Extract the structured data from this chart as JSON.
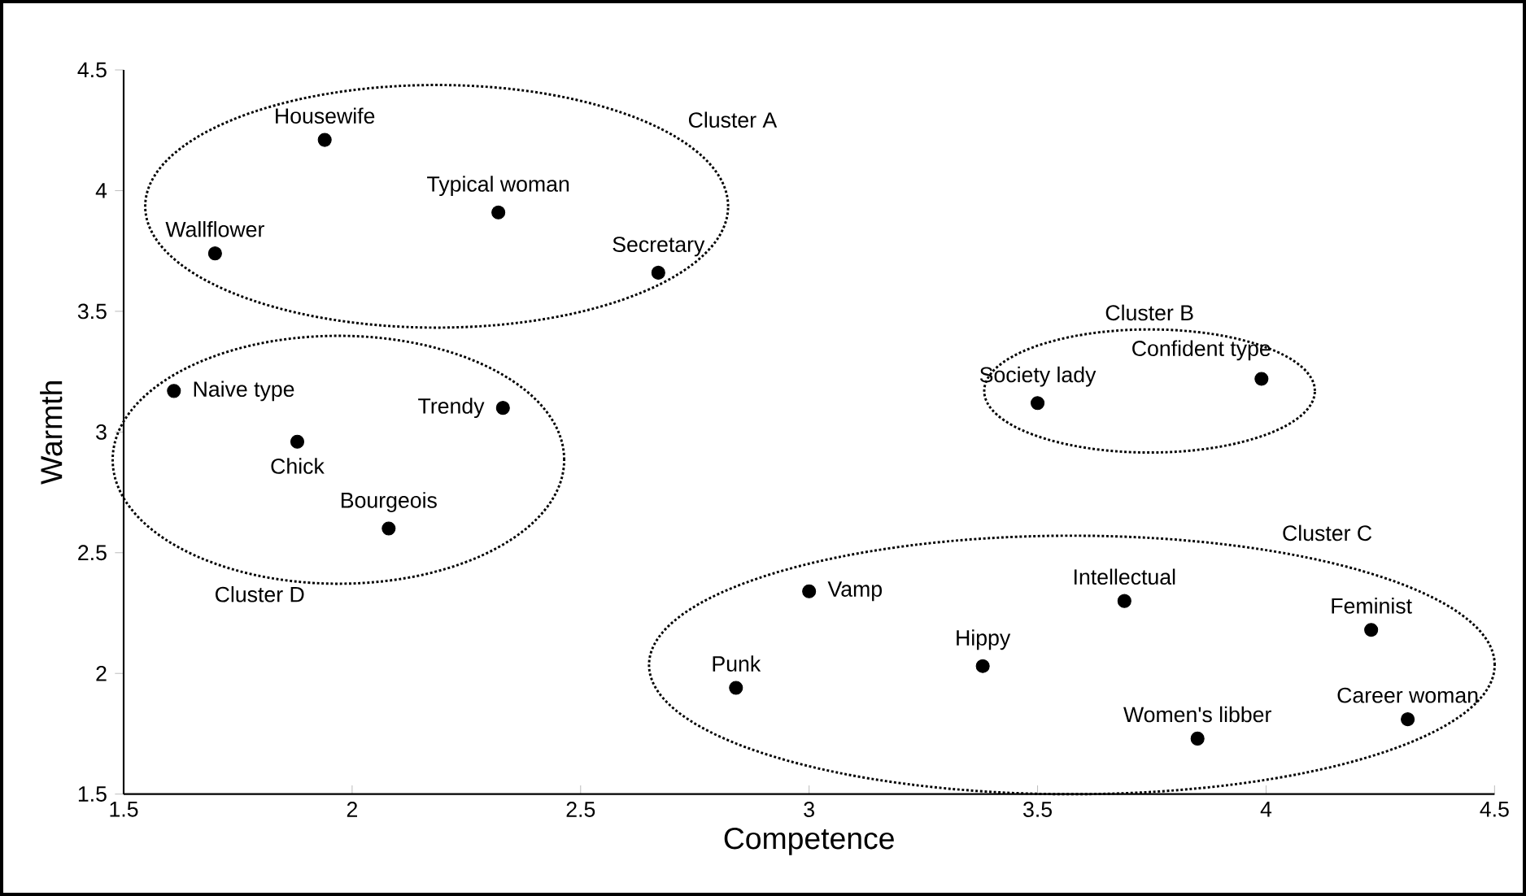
{
  "chart_data": {
    "type": "scatter",
    "xlabel": "Competence",
    "ylabel": "Warmth",
    "xlim": [
      1.5,
      4.5
    ],
    "ylim": [
      1.5,
      4.5
    ],
    "xticks": [
      1.5,
      2,
      2.5,
      3,
      3.5,
      4,
      4.5
    ],
    "yticks": [
      1.5,
      2,
      2.5,
      3,
      3.5,
      4,
      4.5
    ],
    "marker": "circle",
    "annotations": [
      "Cluster A",
      "Cluster B",
      "Cluster C",
      "Cluster D"
    ],
    "series": [
      {
        "color": "#000000",
        "x": [
          1.94,
          2.32,
          1.7,
          2.67
        ],
        "values": [
          4.21,
          3.91,
          3.74,
          3.66
        ],
        "value_labels": [
          "Housewife",
          "Typical woman",
          "Wallflower",
          "Secretary"
        ]
      },
      {
        "color": "#000000",
        "x": [
          3.5,
          3.99
        ],
        "values": [
          3.12,
          3.22
        ],
        "value_labels": [
          "Society lady",
          "Confident type"
        ]
      },
      {
        "color": "#000000",
        "x": [
          3.0,
          3.69,
          4.23,
          3.38,
          2.84,
          4.31,
          3.85
        ],
        "values": [
          2.34,
          2.3,
          2.18,
          2.03,
          1.94,
          1.81,
          1.73
        ],
        "value_labels": [
          "Vamp",
          "Intellectual",
          "Feminist",
          "Hippy",
          "Punk",
          "Career woman",
          "Women's libber"
        ]
      },
      {
        "color": "#000000",
        "x": [
          1.61,
          1.88,
          2.33,
          2.08
        ],
        "values": [
          3.17,
          2.96,
          3.1,
          2.6
        ],
        "value_labels": [
          "Naive type",
          "Chick",
          "Trendy",
          "Bourgeois"
        ]
      }
    ]
  }
}
